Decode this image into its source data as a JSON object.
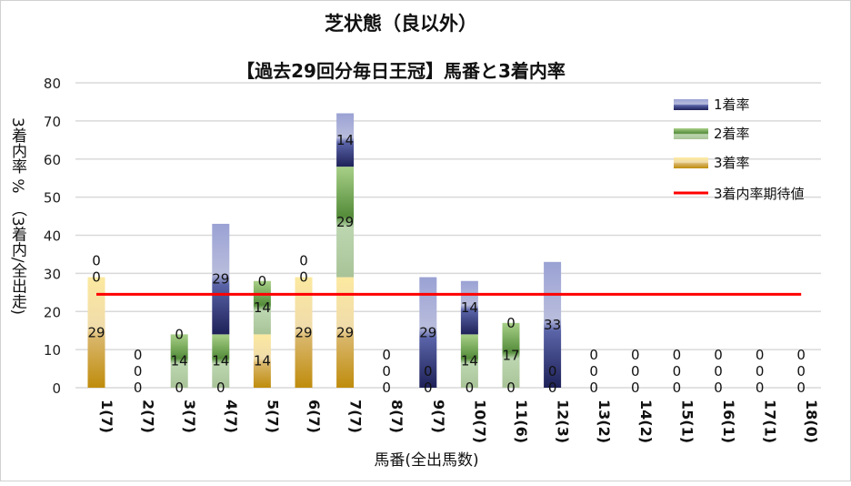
{
  "chart_data": {
    "type": "bar",
    "stacked": true,
    "title": "芝状態（良以外）",
    "subtitle": "【過去29回分毎日王冠】馬番と3着内率",
    "xlabel": "馬番(全出馬数)",
    "ylabel": "3着内率 %　（3着内/全出走)",
    "ylim": [
      0,
      80
    ],
    "yticks": [
      0,
      10,
      20,
      30,
      40,
      50,
      60,
      70,
      80
    ],
    "grid": true,
    "legend_position": "top-right",
    "categories": [
      "1(7)",
      "2(7)",
      "3(7)",
      "4(7)",
      "5(7)",
      "6(7)",
      "7(7)",
      "8(7)",
      "9(7)",
      "10(7)",
      "11(6)",
      "12(3)",
      "13(2)",
      "14(2)",
      "15(1)",
      "16(1)",
      "17(1)",
      "18(0)"
    ],
    "series": [
      {
        "name": "3着率",
        "color": "#e8c060",
        "values": [
          29,
          0,
          0,
          0,
          14,
          29,
          29,
          0,
          0,
          0,
          0,
          0,
          0,
          0,
          0,
          0,
          0,
          0
        ]
      },
      {
        "name": "2着率",
        "color": "#70a850",
        "values": [
          0,
          0,
          14,
          14,
          14,
          0,
          29,
          0,
          0,
          14,
          17,
          0,
          0,
          0,
          0,
          0,
          0,
          0
        ]
      },
      {
        "name": "1着率",
        "color": "#3a4590",
        "values": [
          0,
          0,
          0,
          29,
          0,
          0,
          14,
          0,
          29,
          14,
          0,
          33,
          0,
          0,
          0,
          0,
          0,
          0
        ]
      }
    ],
    "reference_line": {
      "name": "3着内率期待値",
      "value": 24.5,
      "color": "#ff0000"
    }
  }
}
